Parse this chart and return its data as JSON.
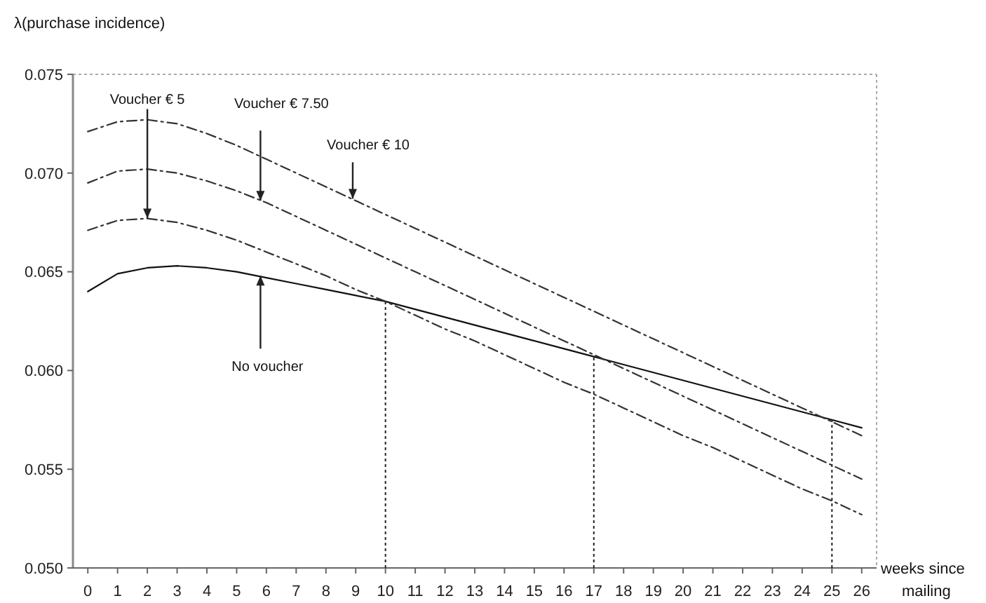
{
  "chart_data": {
    "type": "line",
    "ylabel": "λ(purchase incidence)",
    "xlabel": "weeks since mailing",
    "x": [
      0,
      1,
      2,
      3,
      4,
      5,
      6,
      7,
      8,
      9,
      10,
      11,
      12,
      13,
      14,
      15,
      16,
      17,
      18,
      19,
      20,
      21,
      22,
      23,
      24,
      25,
      26
    ],
    "series": [
      {
        "color": "#111111",
        "line_style": "solid",
        "values": [
          0.064,
          0.0649,
          0.0652,
          0.0653,
          0.0652,
          0.065,
          0.0647,
          0.0644,
          0.0641,
          0.0638,
          0.0635,
          0.0631,
          0.0627,
          0.0623,
          0.0619,
          0.0615,
          0.0611,
          0.0607,
          0.0603,
          0.0599,
          0.0595,
          0.0591,
          0.0587,
          0.0583,
          0.0579,
          0.0575,
          0.0571
        ]
      },
      {
        "color": "#333333",
        "line_style": "dashed",
        "values": [
          0.0671,
          0.0676,
          0.0677,
          0.0675,
          0.0671,
          0.0666,
          0.066,
          0.0654,
          0.0648,
          0.0641,
          0.0635,
          0.0628,
          0.0621,
          0.0615,
          0.0608,
          0.0601,
          0.0594,
          0.0588,
          0.0581,
          0.0574,
          0.0567,
          0.0561,
          0.0554,
          0.0547,
          0.054,
          0.0534,
          0.0527
        ]
      },
      {
        "color": "#333333",
        "line_style": "dashed",
        "values": [
          0.0695,
          0.0701,
          0.0702,
          0.07,
          0.0696,
          0.0691,
          0.0685,
          0.0678,
          0.0671,
          0.0664,
          0.0657,
          0.065,
          0.0643,
          0.0636,
          0.0629,
          0.0622,
          0.0615,
          0.0608,
          0.0601,
          0.0594,
          0.0587,
          0.058,
          0.0573,
          0.0566,
          0.0559,
          0.0552,
          0.0545
        ]
      },
      {
        "color": "#333333",
        "line_style": "dashed",
        "values": [
          0.0721,
          0.0726,
          0.0727,
          0.0725,
          0.072,
          0.0714,
          0.0707,
          0.07,
          0.0693,
          0.0686,
          0.0679,
          0.0672,
          0.0665,
          0.0658,
          0.0651,
          0.0644,
          0.0637,
          0.063,
          0.0623,
          0.0616,
          0.0609,
          0.0602,
          0.0595,
          0.0588,
          0.0581,
          0.0574,
          0.0567
        ]
      }
    ],
    "xlim": [
      -0.5,
      26.5
    ],
    "xticks": [
      0,
      1,
      2,
      3,
      4,
      5,
      6,
      7,
      8,
      9,
      10,
      11,
      12,
      13,
      14,
      15,
      16,
      17,
      18,
      19,
      20,
      21,
      22,
      23,
      24,
      25,
      26
    ],
    "ylim": [
      0.05,
      0.075
    ],
    "yticks": [
      {
        "value": 0.05,
        "label": "0.050"
      },
      {
        "value": 0.055,
        "label": "0.055"
      },
      {
        "value": 0.06,
        "label": "0.060"
      },
      {
        "value": 0.065,
        "label": "0.065"
      },
      {
        "value": 0.07,
        "label": "0.070"
      },
      {
        "value": 0.075,
        "label": "0.075"
      }
    ],
    "ref_lines": [
      {
        "axis": "x",
        "value": 10,
        "color": "#222222",
        "line_style": "dotted"
      },
      {
        "axis": "x",
        "value": 17,
        "color": "#222222",
        "line_style": "dotted"
      },
      {
        "axis": "x",
        "value": 25,
        "color": "#222222",
        "line_style": "dotted"
      }
    ],
    "annotations": [
      {
        "text": "Voucher € 5",
        "x": 2,
        "y": 0.0677
      },
      {
        "text": "Voucher € 7.50",
        "x": 5.8,
        "y": 0.0686
      },
      {
        "text": "Voucher € 10",
        "x": 8.9,
        "y": 0.0687
      },
      {
        "text": "No voucher",
        "x": 5.8,
        "y": 0.0648
      }
    ],
    "grid": false,
    "marker": "none"
  }
}
